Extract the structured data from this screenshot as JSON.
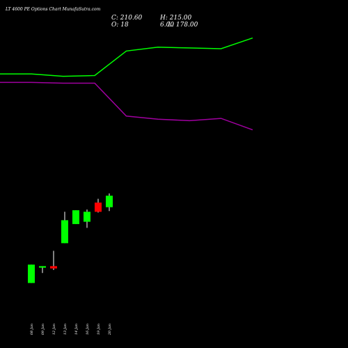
{
  "chart_data": {
    "type": "candlestick",
    "title": "LT 4600 PE Options Chart MunafaSutra.com",
    "ohlc_labels": {
      "close": "C: 210.60",
      "high": "H: 215.00",
      "open": "O: 18",
      "low_overlap": "6.00",
      "low": "L: 178.00"
    },
    "categories": [
      "08 Jan",
      "09 Jan",
      "12 Jan",
      "13 Jan",
      "14 Jan",
      "16 Jan",
      "19 Jan",
      "20 Jan"
    ],
    "candles": [
      {
        "date": "08 Jan",
        "open": 44,
        "high": 68,
        "low": 44,
        "close": 68,
        "color": "green"
      },
      {
        "date": "09 Jan",
        "open": 64,
        "high": 66,
        "low": 57,
        "close": 66,
        "color": "green"
      },
      {
        "date": "12 Jan",
        "open": 66,
        "high": 86,
        "low": 61,
        "close": 63,
        "color": "red"
      },
      {
        "date": "13 Jan",
        "open": 96,
        "high": 137,
        "low": 96,
        "close": 126,
        "color": "green"
      },
      {
        "date": "14 Jan",
        "open": 121,
        "high": 139,
        "low": 121,
        "close": 139,
        "color": "green"
      },
      {
        "date": "16 Jan",
        "open": 124,
        "high": 140,
        "low": 116,
        "close": 137,
        "color": "green"
      },
      {
        "date": "19 Jan",
        "open": 149,
        "high": 154,
        "low": 136,
        "close": 137,
        "color": "red"
      },
      {
        "date": "20 Jan",
        "open": 143,
        "high": 161,
        "low": 138,
        "close": 158,
        "color": "green"
      }
    ],
    "band_x": [
      0,
      45,
      90,
      135,
      180,
      225,
      270,
      315,
      360
    ],
    "upper_band": [
      317,
      317,
      314,
      315,
      347,
      352,
      351,
      350,
      364
    ],
    "lower_band": [
      306,
      306,
      305,
      305,
      262,
      258,
      256,
      259,
      244
    ],
    "ylim": [
      0,
      400
    ],
    "colors": {
      "background": "#000000",
      "up": "#00ff00",
      "down": "#ff0000",
      "upper_band": "#00ff00",
      "lower_band": "#a000a0",
      "text": "#ffffff"
    }
  }
}
